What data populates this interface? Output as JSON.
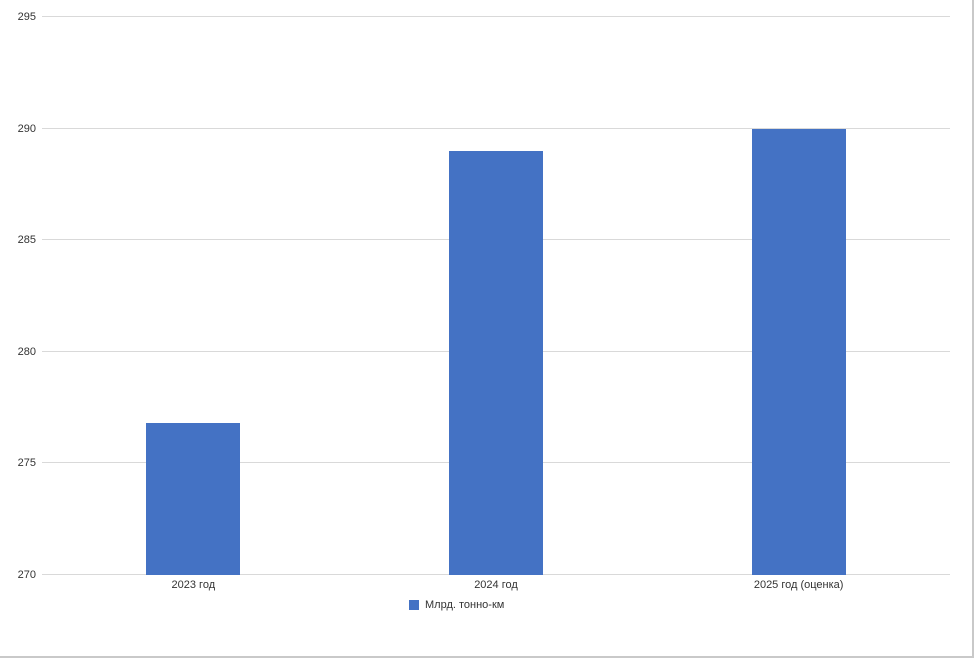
{
  "chart_data": {
    "type": "bar",
    "categories": [
      "2023 год",
      "2024 год",
      "2025 год (оценка)"
    ],
    "series": [
      {
        "name": "Млрд. тонно-км",
        "values": [
          276.8,
          289,
          290
        ]
      }
    ],
    "title": "",
    "xlabel": "",
    "ylabel": "",
    "ylim": [
      270,
      295
    ],
    "yticks": [
      270,
      275,
      280,
      285,
      290,
      295
    ],
    "grid": true,
    "legend_position": "bottom",
    "colors": {
      "bar": "#4472C4",
      "gridline": "#D9D9D9",
      "text": "#333333",
      "frame_border": "#C9C9C9"
    }
  }
}
